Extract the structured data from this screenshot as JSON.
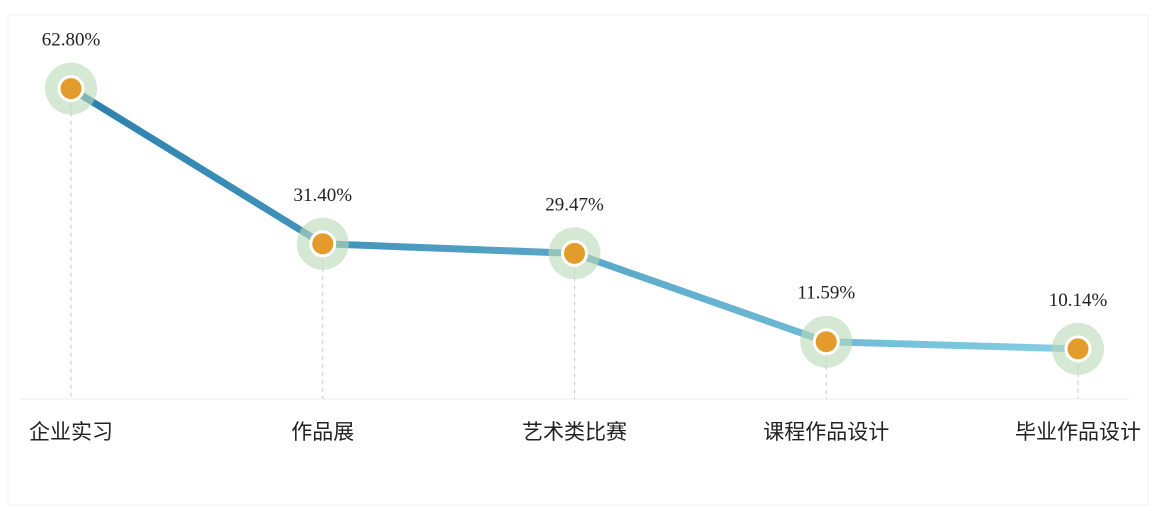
{
  "chart_data": {
    "type": "line",
    "categories": [
      "企业实习",
      "作品展",
      "艺术类比赛",
      "课程作品设计",
      "毕业作品设计"
    ],
    "values": [
      62.8,
      31.4,
      29.47,
      11.59,
      10.14
    ],
    "value_labels": [
      "62.80%",
      "31.40%",
      "29.47%",
      "11.59%",
      "10.14%"
    ],
    "color": "#3a8fb8",
    "marker_color": "#e39b2b",
    "ylim": [
      0,
      70
    ]
  }
}
